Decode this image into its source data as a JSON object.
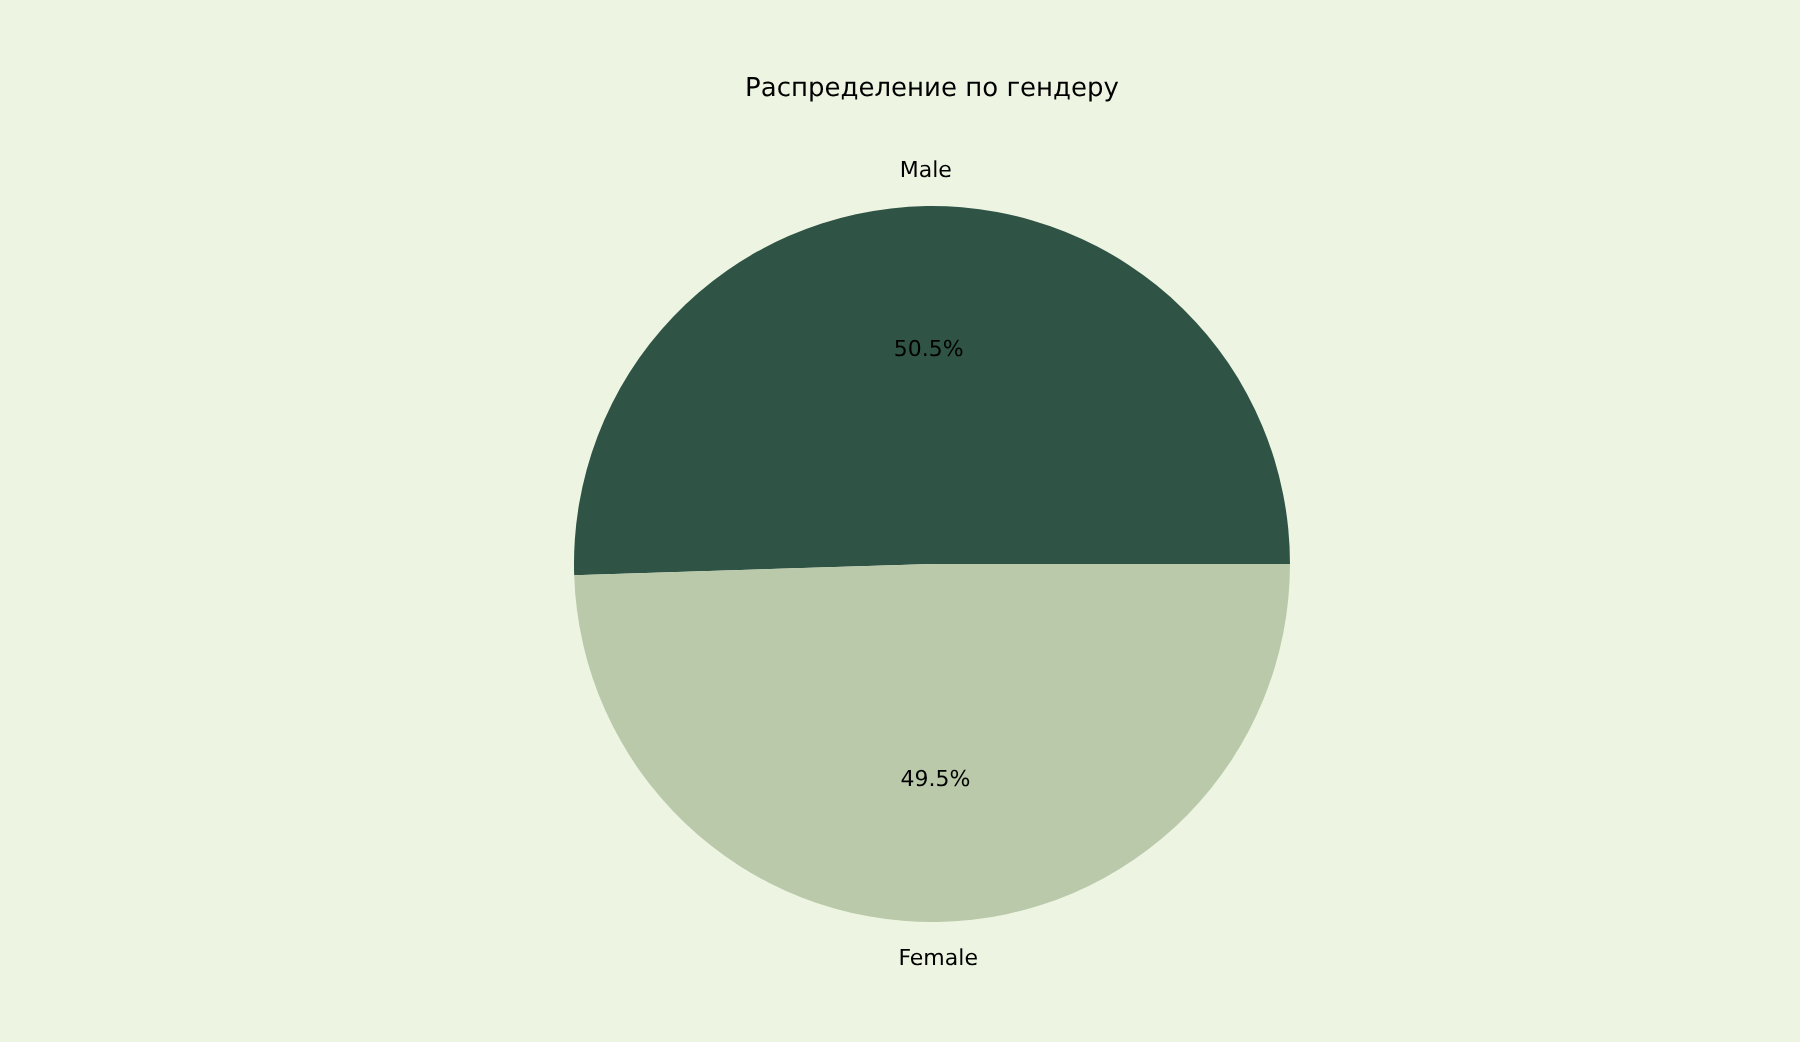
{
  "chart_data": {
    "type": "pie",
    "title": "Распределение по гендеру",
    "categories": [
      "Male",
      "Female"
    ],
    "values": [
      50.5,
      49.5
    ],
    "colors": [
      "#2f5446",
      "#bac9aa"
    ],
    "value_labels": [
      "50.5%",
      "49.5%"
    ]
  }
}
